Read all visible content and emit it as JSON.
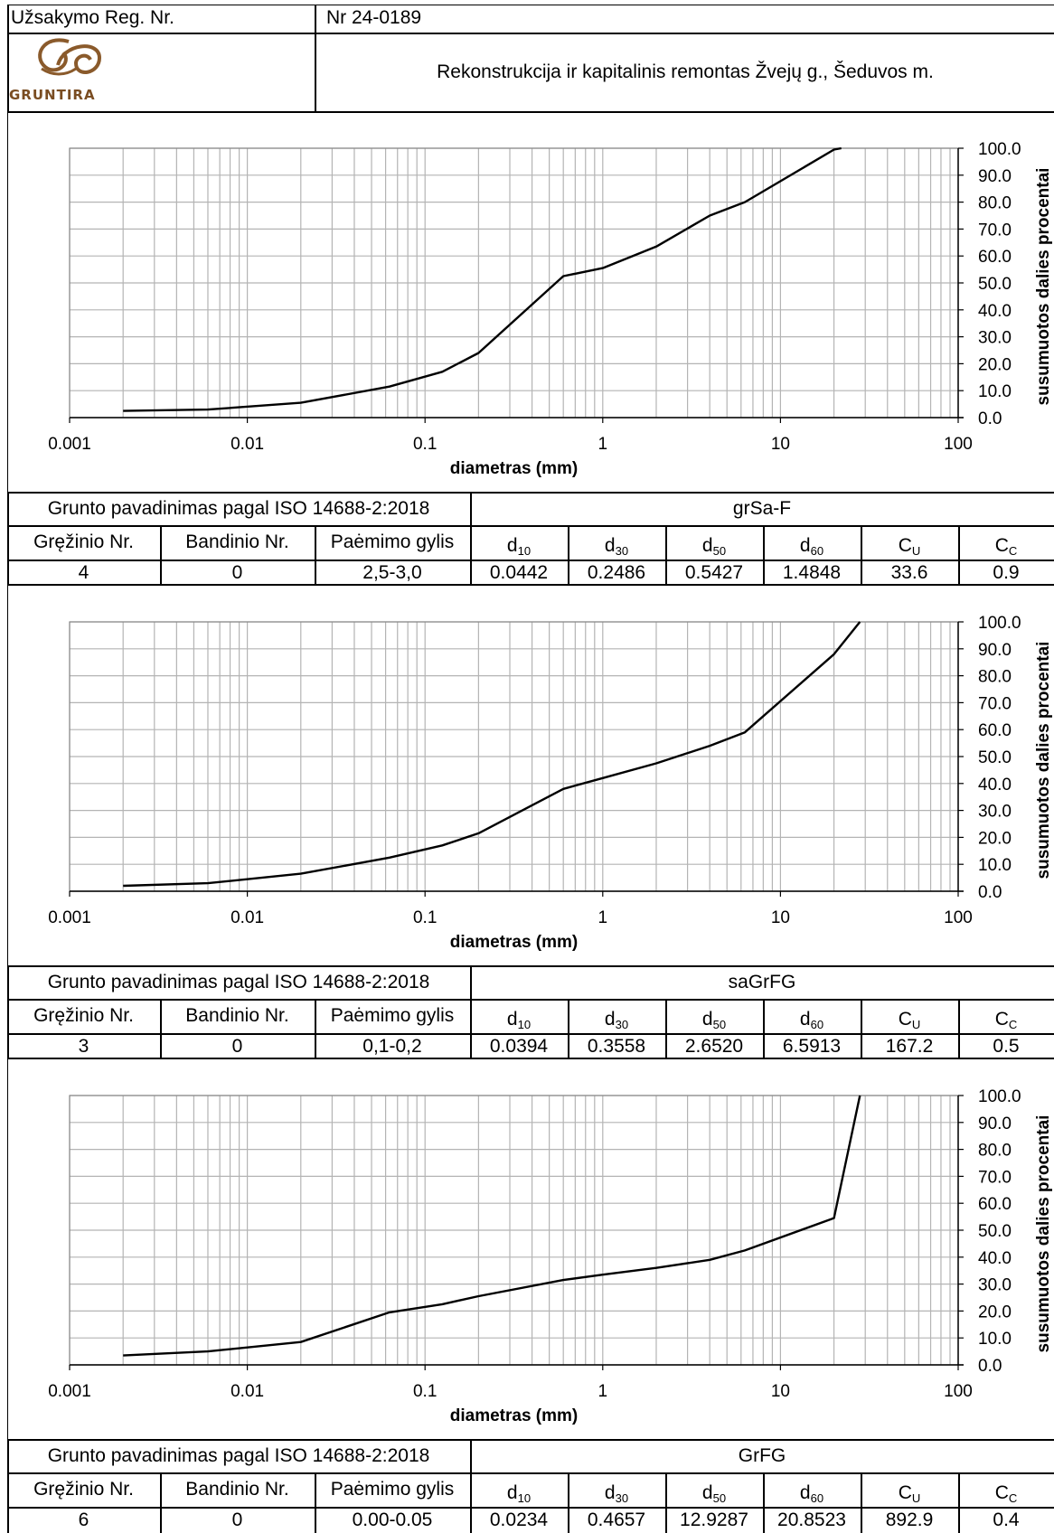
{
  "header": {
    "order_label": "Užsakymo Reg. Nr.",
    "order_number": "Nr 24-0189",
    "logo_text": "GRUNTIRA",
    "project_title": "Rekonstrukcija ir kapitalinis remontas Žvejų g., Šeduvos m."
  },
  "colors": {
    "line": "#000000",
    "grid": "#b4b4b4"
  },
  "table_labels": {
    "name_label": "Grunto pavadinimas pagal ISO 14688-2:2018",
    "col_well": "Gręžinio Nr.",
    "col_sample": "Bandinio Nr.",
    "col_depth": "Paėmimo gylis",
    "col_d10": "d",
    "col_d10_sub": "10",
    "col_d30": "d",
    "col_d30_sub": "30",
    "col_d50": "d",
    "col_d50_sub": "50",
    "col_d60": "d",
    "col_d60_sub": "60",
    "col_cu": "C",
    "col_cu_sub": "U",
    "col_cc": "C",
    "col_cc_sub": "C"
  },
  "chart_data": [
    {
      "type": "line",
      "xscale": "log",
      "xlabel": "diametras (mm)",
      "ylabel": "susumuotos dalies procentai",
      "xlim": [
        0.001,
        100
      ],
      "ylim": [
        0,
        100
      ],
      "x_ticks": [
        "0.001",
        "0.01",
        "0.1",
        "1",
        "10",
        "100"
      ],
      "y_ticks": [
        "100.0",
        "90.0",
        "80.0",
        "70.0",
        "60.0",
        "50.0",
        "40.0",
        "30.0",
        "20.0",
        "10.0",
        "0.0"
      ],
      "grid": true,
      "x": [
        0.002,
        0.006,
        0.02,
        0.063,
        0.125,
        0.2,
        0.6,
        1,
        2,
        4,
        6.3,
        20,
        22
      ],
      "y": [
        2.5,
        3,
        5.5,
        11.5,
        17,
        24,
        52.5,
        55.5,
        63.5,
        75,
        80,
        99.5,
        100
      ]
    },
    {
      "type": "line",
      "xscale": "log",
      "xlabel": "diametras (mm)",
      "ylabel": "susumuotos dalies procentai",
      "xlim": [
        0.001,
        100
      ],
      "ylim": [
        0,
        100
      ],
      "x_ticks": [
        "0.001",
        "0.01",
        "0.1",
        "1",
        "10",
        "100"
      ],
      "y_ticks": [
        "100.0",
        "90.0",
        "80.0",
        "70.0",
        "60.0",
        "50.0",
        "40.0",
        "30.0",
        "20.0",
        "10.0",
        "0.0"
      ],
      "grid": true,
      "x": [
        0.002,
        0.006,
        0.02,
        0.063,
        0.125,
        0.2,
        0.6,
        1,
        2,
        4,
        6.3,
        20,
        28
      ],
      "y": [
        2,
        3,
        6.5,
        12.5,
        17,
        21.5,
        38,
        42,
        47.5,
        54,
        59,
        88,
        100
      ]
    },
    {
      "type": "line",
      "xscale": "log",
      "xlabel": "diametras (mm)",
      "ylabel": "susumuotos dalies procentai",
      "xlim": [
        0.001,
        100
      ],
      "ylim": [
        0,
        100
      ],
      "x_ticks": [
        "0.001",
        "0.01",
        "0.1",
        "1",
        "10",
        "100"
      ],
      "y_ticks": [
        "100.0",
        "90.0",
        "80.0",
        "70.0",
        "60.0",
        "50.0",
        "40.0",
        "30.0",
        "20.0",
        "10.0",
        "0.0"
      ],
      "grid": true,
      "x": [
        0.002,
        0.006,
        0.02,
        0.063,
        0.125,
        0.2,
        0.6,
        1,
        2,
        4,
        6.3,
        20,
        28
      ],
      "y": [
        3.5,
        5,
        8.5,
        19.5,
        22.5,
        25.5,
        31.5,
        33.5,
        36,
        39,
        42.5,
        54.5,
        100
      ]
    }
  ],
  "samples": [
    {
      "name": "grSa-F",
      "well": "4",
      "sample": "0",
      "depth": "2,5-3,0",
      "d10": "0.0442",
      "d30": "0.2486",
      "d50": "0.5427",
      "d60": "1.4848",
      "cu": "33.6",
      "cc": "0.9"
    },
    {
      "name": "saGrFG",
      "well": "3",
      "sample": "0",
      "depth": "0,1-0,2",
      "d10": "0.0394",
      "d30": "0.3558",
      "d50": "2.6520",
      "d60": "6.5913",
      "cu": "167.2",
      "cc": "0.5"
    },
    {
      "name": "GrFG",
      "well": "6",
      "sample": "0",
      "depth": "0.00-0.05",
      "d10": "0.0234",
      "d30": "0.4657",
      "d50": "12.9287",
      "d60": "20.8523",
      "cu": "892.9",
      "cc": "0.4"
    }
  ]
}
